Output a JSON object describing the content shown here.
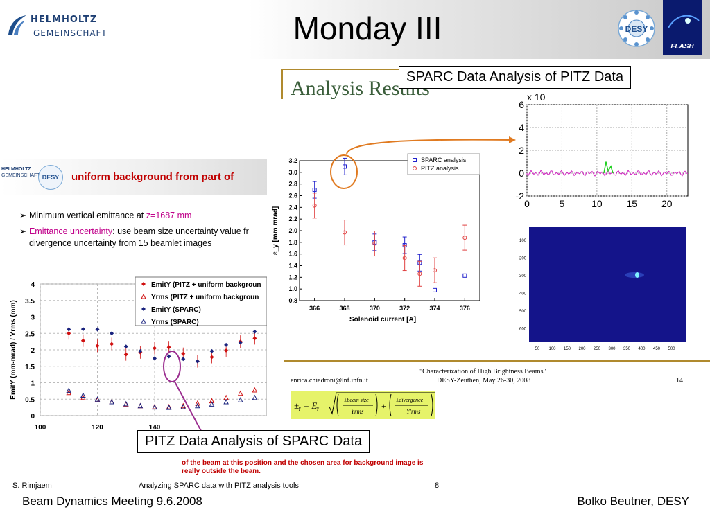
{
  "header": {
    "org_name_1": "HELMHOLTZ",
    "org_name_2": "GEMEINSCHAFT",
    "title": "Monday III",
    "desy_label": "DESY",
    "flash_label": "FLASH"
  },
  "callouts": {
    "top": "SPARC Data Analysis of PITZ Data",
    "bottom": "PITZ Data Analysis of SPARC Data"
  },
  "left_slide": {
    "logo_1": "HELMHOLTZ",
    "logo_2": "GEMEINSCHAFT",
    "logo_desy": "DESY",
    "heading": "uniform background from part of",
    "bullet1_prefix": "Minimum vertical emittance at ",
    "bullet1_value": "z=1687 mm",
    "bullet2_term": "Emittance uncertainty",
    "bullet2_rest": ": use beam size uncertainty value fr",
    "bullet2_line2": "divergence uncertainty from 15 beamlet images",
    "note_line1": "of the beam at this position and the chosen area for background image is",
    "note_line2": "really outside the beam.",
    "footer_author": "S. Rimjaem",
    "footer_title": "Analyzing SPARC data with PITZ analysis tools",
    "footer_page": "8"
  },
  "right_slide": {
    "heading": "Analysis Results",
    "conf_line1": "\"Characterization of High Brightness Beams\"",
    "conf_line2": "DESY-Zeuthen, May 26-30, 2008",
    "email": "enrica.chiadroni@lnf.infn.it",
    "page": "14"
  },
  "footer": {
    "left": "Beam Dynamics Meeting 9.6.2008",
    "right": "Bolko Beutner, DESY"
  },
  "chart_data": [
    {
      "type": "scatter",
      "ylabel": "EmitY (mm-mrad) / Yrms (mm)",
      "xlim": [
        100,
        180
      ],
      "ylim": [
        0,
        4
      ],
      "x_ticks": [
        "100",
        "120",
        "140"
      ],
      "y_ticks": [
        "0",
        "0.5",
        "1",
        "1.5",
        "2",
        "2.5",
        "3",
        "3.5",
        "4"
      ],
      "legend": [
        "EmitY (PITZ + uniform backgroun",
        "Yrms (PITZ + uniform backgroun",
        "EmitY (SPARC)",
        "Yrms (SPARC)"
      ],
      "series": [
        {
          "name": "EmitY (PITZ + uniform backgroun",
          "color": "#d01010",
          "marker": "diamond",
          "x": [
            110,
            115,
            120,
            125,
            130,
            135,
            140,
            145,
            150,
            155,
            160,
            165,
            170,
            175
          ],
          "values": [
            2.5,
            2.28,
            2.12,
            2.18,
            1.86,
            1.92,
            2.05,
            2.08,
            1.88,
            1.65,
            1.78,
            1.98,
            2.25,
            2.35
          ]
        },
        {
          "name": "Yrms (PITZ + uniform backgroun",
          "color": "#d01010",
          "marker": "triangle",
          "x": [
            110,
            115,
            120,
            125,
            130,
            135,
            140,
            145,
            150,
            155,
            160,
            165,
            170,
            175
          ],
          "values": [
            0.7,
            0.55,
            0.48,
            0.42,
            0.35,
            0.3,
            0.27,
            0.27,
            0.3,
            0.38,
            0.45,
            0.55,
            0.68,
            0.78
          ]
        },
        {
          "name": "EmitY (SPARC)",
          "color": "#1a237e",
          "marker": "diamond",
          "x": [
            110,
            115,
            120,
            125,
            130,
            135,
            140,
            145,
            150,
            155,
            160,
            165,
            170,
            175
          ],
          "values": [
            2.62,
            2.63,
            2.62,
            2.5,
            2.1,
            1.96,
            1.74,
            1.8,
            1.72,
            1.65,
            1.96,
            2.15,
            2.22,
            2.55
          ]
        },
        {
          "name": "Yrms (SPARC)",
          "color": "#1a237e",
          "marker": "triangle",
          "x": [
            110,
            115,
            120,
            125,
            130,
            135,
            140,
            145,
            150,
            155,
            160,
            165,
            170,
            175
          ],
          "values": [
            0.77,
            0.62,
            0.5,
            0.42,
            0.36,
            0.3,
            0.26,
            0.25,
            0.27,
            0.3,
            0.35,
            0.42,
            0.48,
            0.55
          ]
        }
      ]
    },
    {
      "type": "scatter",
      "xlabel": "Solenoid current [A]",
      "ylabel": "ε_y [mm mrad]",
      "xlim": [
        365,
        377
      ],
      "ylim": [
        0.8,
        3.2
      ],
      "x_ticks": [
        "366",
        "368",
        "370",
        "372",
        "374",
        "376"
      ],
      "y_ticks": [
        "0.8",
        "1.0",
        "1.2",
        "1.4",
        "1.6",
        "1.8",
        "2.0",
        "2.2",
        "2.4",
        "2.6",
        "2.8",
        "3.0",
        "3.2"
      ],
      "legend": [
        "SPARC analysis",
        "PITZ analysis"
      ],
      "series": [
        {
          "name": "SPARC analysis",
          "color": "#2222cc",
          "marker": "square",
          "x": [
            366,
            368,
            370,
            372,
            373,
            374,
            376
          ],
          "values": [
            2.7,
            3.1,
            1.8,
            1.75,
            1.45,
            0.98,
            1.23
          ]
        },
        {
          "name": "PITZ analysis",
          "color": "#e04040",
          "marker": "circle",
          "x": [
            366,
            368,
            370,
            372,
            373,
            374,
            376
          ],
          "values": [
            2.43,
            1.97,
            1.78,
            1.53,
            1.26,
            1.32,
            1.88
          ]
        }
      ]
    },
    {
      "type": "line",
      "x_ticks": [
        "0",
        "5",
        "10",
        "15",
        "20"
      ],
      "y_ticks": [
        "-2",
        "0",
        "2",
        "4",
        "6"
      ],
      "ylabel": "x 10"
    },
    {
      "type": "heatmap",
      "x_ticks": [
        "50",
        "100",
        "150",
        "200",
        "250",
        "300",
        "350",
        "400",
        "450",
        "500"
      ],
      "y_ticks": [
        "100",
        "200",
        "300",
        "400",
        "500",
        "600"
      ]
    }
  ]
}
